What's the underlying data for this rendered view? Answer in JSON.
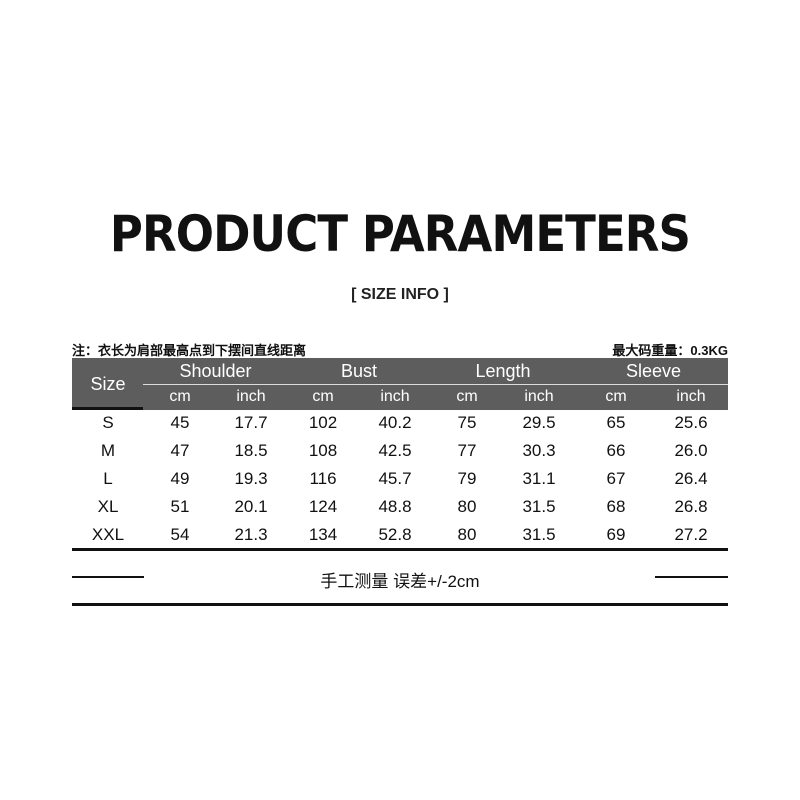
{
  "title": "PRODUCT PARAMETERS",
  "subtitle": "[ SIZE  INFO ]",
  "note_left": "注：衣长为肩部最高点到下摆间直线距离",
  "note_right": "最大码重量：0.3KG",
  "table": {
    "size_header": "Size",
    "groups": [
      "Shoulder",
      "Bust",
      "Length",
      "Sleeve"
    ],
    "units": [
      "cm",
      "inch",
      "cm",
      "inch",
      "cm",
      "inch",
      "cm",
      "inch"
    ],
    "rows": [
      [
        "S",
        "45",
        "17.7",
        "102",
        "40.2",
        "75",
        "29.5",
        "65",
        "25.6"
      ],
      [
        "M",
        "47",
        "18.5",
        "108",
        "42.5",
        "77",
        "30.3",
        "66",
        "26.0"
      ],
      [
        "L",
        "49",
        "19.3",
        "116",
        "45.7",
        "79",
        "31.1",
        "67",
        "26.4"
      ],
      [
        "XL",
        "51",
        "20.1",
        "124",
        "48.8",
        "80",
        "31.5",
        "68",
        "26.8"
      ],
      [
        "XXL",
        "54",
        "21.3",
        "134",
        "52.8",
        "80",
        "31.5",
        "69",
        "27.2"
      ]
    ]
  },
  "footer": "手工测量 误差+/-2cm",
  "colors": {
    "header_band": "#5d5d5d"
  }
}
